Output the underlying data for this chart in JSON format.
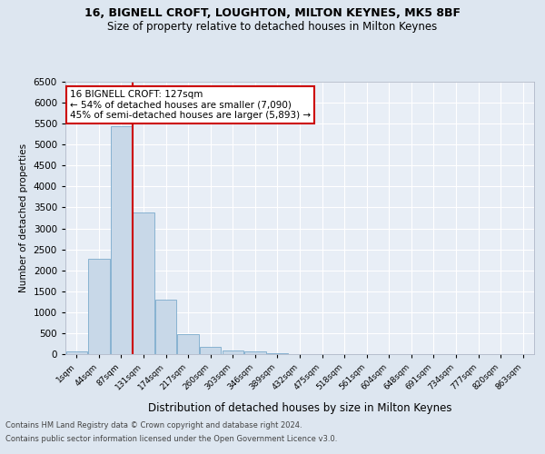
{
  "title_line1": "16, BIGNELL CROFT, LOUGHTON, MILTON KEYNES, MK5 8BF",
  "title_line2": "Size of property relative to detached houses in Milton Keynes",
  "xlabel": "Distribution of detached houses by size in Milton Keynes",
  "ylabel": "Number of detached properties",
  "bar_labels": [
    "1sqm",
    "44sqm",
    "87sqm",
    "131sqm",
    "174sqm",
    "217sqm",
    "260sqm",
    "303sqm",
    "346sqm",
    "389sqm",
    "432sqm",
    "475sqm",
    "518sqm",
    "561sqm",
    "604sqm",
    "648sqm",
    "691sqm",
    "734sqm",
    "777sqm",
    "820sqm",
    "863sqm"
  ],
  "bar_values": [
    60,
    2280,
    5440,
    3380,
    1300,
    475,
    165,
    90,
    55,
    30,
    10,
    5,
    3,
    2,
    1,
    0,
    0,
    0,
    0,
    0,
    0
  ],
  "bar_color": "#c8d8e8",
  "bar_edgecolor": "#7aabcc",
  "vline_x": 2.5,
  "vline_color": "#cc0000",
  "annotation_text": "16 BIGNELL CROFT: 127sqm\n← 54% of detached houses are smaller (7,090)\n45% of semi-detached houses are larger (5,893) →",
  "annotation_box_color": "#cc0000",
  "ylim": [
    0,
    6500
  ],
  "yticks": [
    0,
    500,
    1000,
    1500,
    2000,
    2500,
    3000,
    3500,
    4000,
    4500,
    5000,
    5500,
    6000,
    6500
  ],
  "footer_line1": "Contains HM Land Registry data © Crown copyright and database right 2024.",
  "footer_line2": "Contains public sector information licensed under the Open Government Licence v3.0.",
  "bg_color": "#dde6f0",
  "plot_bg_color": "#e8eef6",
  "grid_color": "#ffffff",
  "title1_fontsize": 9,
  "title2_fontsize": 8.5
}
